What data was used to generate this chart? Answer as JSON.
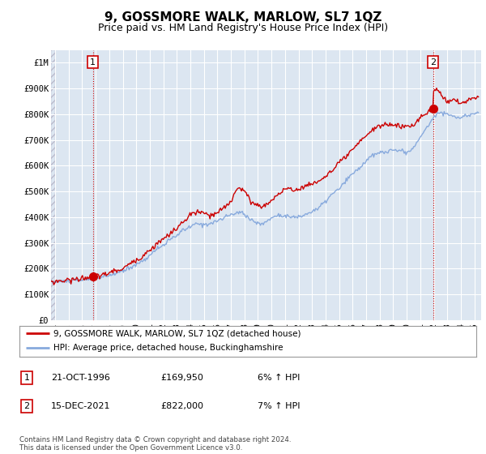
{
  "title": "9, GOSSMORE WALK, MARLOW, SL7 1QZ",
  "subtitle": "Price paid vs. HM Land Registry's House Price Index (HPI)",
  "ylim": [
    0,
    1050000
  ],
  "yticks": [
    0,
    100000,
    200000,
    300000,
    400000,
    500000,
    600000,
    700000,
    800000,
    900000,
    1000000
  ],
  "ytick_labels": [
    "£0",
    "£100K",
    "£200K",
    "£300K",
    "£400K",
    "£500K",
    "£600K",
    "£700K",
    "£800K",
    "£900K",
    "£1M"
  ],
  "xlim_start": 1993.7,
  "xlim_end": 2025.5,
  "xtick_years": [
    1994,
    1995,
    1996,
    1997,
    1998,
    1999,
    2000,
    2001,
    2002,
    2003,
    2004,
    2005,
    2006,
    2007,
    2008,
    2009,
    2010,
    2011,
    2012,
    2013,
    2014,
    2015,
    2016,
    2017,
    2018,
    2019,
    2020,
    2021,
    2022,
    2023,
    2024,
    2025
  ],
  "sale1_x": 1996.8,
  "sale1_y": 169950,
  "sale1_label": "1",
  "sale2_x": 2021.95,
  "sale2_y": 822000,
  "sale2_label": "2",
  "line1_color": "#cc0000",
  "line2_color": "#88aadd",
  "background_color": "#ffffff",
  "plot_bg_color": "#dce6f1",
  "grid_color": "#ffffff",
  "legend_line1": "9, GOSSMORE WALK, MARLOW, SL7 1QZ (detached house)",
  "legend_line2": "HPI: Average price, detached house, Buckinghamshire",
  "table_row1": [
    "1",
    "21-OCT-1996",
    "£169,950",
    "6% ↑ HPI"
  ],
  "table_row2": [
    "2",
    "15-DEC-2021",
    "£822,000",
    "7% ↑ HPI"
  ],
  "footer": "Contains HM Land Registry data © Crown copyright and database right 2024.\nThis data is licensed under the Open Government Licence v3.0.",
  "title_fontsize": 11,
  "subtitle_fontsize": 9,
  "tick_fontsize": 7.5,
  "marker_color": "#cc0000",
  "vline_color": "#cc0000"
}
